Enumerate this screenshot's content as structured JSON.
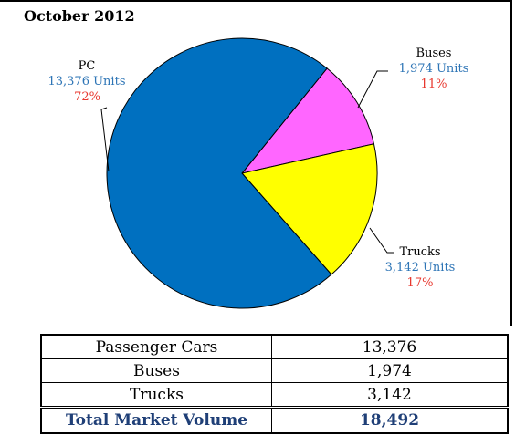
{
  "header": {
    "title": "October 2012"
  },
  "chart_data": {
    "type": "pie",
    "slices": [
      {
        "name": "PC",
        "value": 13376,
        "units": "13,376 Units",
        "percent": "72%",
        "color": "#0070c0"
      },
      {
        "name": "Buses",
        "value": 1974,
        "units": "1,974 Units",
        "percent": "11%",
        "color": "#ff66ff"
      },
      {
        "name": "Trucks",
        "value": 3142,
        "units": "3,142 Units",
        "percent": "17%",
        "color": "#ffff00"
      }
    ]
  },
  "table": {
    "rows": [
      {
        "label": "Passenger Cars",
        "value": "13,376"
      },
      {
        "label": "Buses",
        "value": "1,974"
      },
      {
        "label": "Trucks",
        "value": "3,142"
      }
    ],
    "total": {
      "label": "Total Market Volume",
      "value": "18,492"
    }
  }
}
